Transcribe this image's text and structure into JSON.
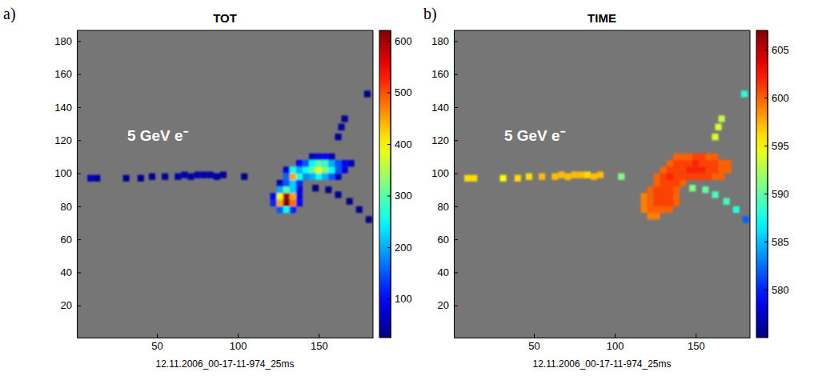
{
  "chart_data": [
    {
      "type": "heatmap",
      "panel_label": "a)",
      "title": "TOT",
      "xlabel": "12.11.2006_00-17-11-974_25ms",
      "annotation": "5 GeV e⁻",
      "xlim": [
        0.5,
        183.5
      ],
      "ylim": [
        0.5,
        186.5
      ],
      "xticks": [
        50,
        100,
        150
      ],
      "yticks": [
        20,
        40,
        60,
        80,
        100,
        120,
        140,
        160,
        180
      ],
      "cell_size": 4,
      "cells": [
        [
          9,
          97,
          60
        ],
        [
          13,
          97,
          40
        ],
        [
          31,
          97,
          30
        ],
        [
          40,
          97,
          35
        ],
        [
          47,
          98,
          35
        ],
        [
          55,
          98,
          40
        ],
        [
          63,
          98,
          45
        ],
        [
          67,
          99,
          50
        ],
        [
          71,
          98,
          45
        ],
        [
          75,
          99,
          55
        ],
        [
          79,
          99,
          50
        ],
        [
          83,
          99,
          55
        ],
        [
          87,
          98,
          45
        ],
        [
          91,
          99,
          40
        ],
        [
          104,
          98,
          28
        ],
        [
          126,
          78,
          150
        ],
        [
          130,
          78,
          250
        ],
        [
          134,
          78,
          120
        ],
        [
          122,
          82,
          120
        ],
        [
          126,
          82,
          450
        ],
        [
          130,
          82,
          620
        ],
        [
          134,
          82,
          480
        ],
        [
          138,
          82,
          100
        ],
        [
          122,
          86,
          100
        ],
        [
          126,
          86,
          400
        ],
        [
          130,
          86,
          600
        ],
        [
          134,
          86,
          450
        ],
        [
          138,
          86,
          90
        ],
        [
          126,
          90,
          200
        ],
        [
          130,
          90,
          300
        ],
        [
          134,
          90,
          220
        ],
        [
          138,
          90,
          80
        ],
        [
          126,
          94,
          60
        ],
        [
          130,
          94,
          150
        ],
        [
          134,
          94,
          220
        ],
        [
          138,
          94,
          120
        ],
        [
          130,
          98,
          160
        ],
        [
          134,
          98,
          450
        ],
        [
          138,
          98,
          260
        ],
        [
          142,
          98,
          180
        ],
        [
          146,
          98,
          200
        ],
        [
          150,
          98,
          250
        ],
        [
          154,
          98,
          200
        ],
        [
          158,
          98,
          150
        ],
        [
          162,
          98,
          60
        ],
        [
          130,
          102,
          80
        ],
        [
          134,
          102,
          260
        ],
        [
          138,
          102,
          200
        ],
        [
          142,
          102,
          250
        ],
        [
          146,
          102,
          300
        ],
        [
          150,
          102,
          380
        ],
        [
          154,
          102,
          320
        ],
        [
          158,
          102,
          250
        ],
        [
          162,
          102,
          150
        ],
        [
          166,
          102,
          80
        ],
        [
          138,
          106,
          100
        ],
        [
          142,
          106,
          150
        ],
        [
          146,
          106,
          250
        ],
        [
          150,
          106,
          300
        ],
        [
          154,
          106,
          280
        ],
        [
          158,
          106,
          200
        ],
        [
          162,
          106,
          150
        ],
        [
          166,
          106,
          100
        ],
        [
          170,
          106,
          60
        ],
        [
          146,
          110,
          60
        ],
        [
          150,
          110,
          80
        ],
        [
          154,
          110,
          100
        ],
        [
          158,
          110,
          60
        ],
        [
          162,
          122,
          40
        ],
        [
          164,
          128,
          45
        ],
        [
          166,
          133,
          40
        ],
        [
          180,
          148,
          30
        ],
        [
          148,
          91,
          30
        ],
        [
          156,
          90,
          35
        ],
        [
          162,
          87,
          35
        ],
        [
          169,
          83,
          30
        ],
        [
          175,
          78,
          35
        ],
        [
          181,
          72,
          30
        ]
      ],
      "colorbar": {
        "range": [
          25,
          620
        ],
        "ticks": [
          100,
          200,
          300,
          400,
          500,
          600
        ]
      }
    },
    {
      "type": "heatmap",
      "panel_label": "b)",
      "title": "TIME",
      "xlabel": "12.11.2006_00-17-11-974_25ms",
      "annotation": "5 GeV e⁻",
      "xlim": [
        0.5,
        183.5
      ],
      "ylim": [
        0.5,
        186.5
      ],
      "xticks": [
        50,
        100,
        150
      ],
      "yticks": [
        20,
        40,
        60,
        80,
        100,
        120,
        140,
        160,
        180
      ],
      "cell_size": 4,
      "cells": [
        [
          9,
          97,
          596
        ],
        [
          13,
          97,
          596
        ],
        [
          31,
          97,
          595
        ],
        [
          40,
          97,
          596
        ],
        [
          47,
          98,
          596
        ],
        [
          55,
          98,
          597
        ],
        [
          63,
          98,
          597
        ],
        [
          67,
          99,
          597
        ],
        [
          71,
          98,
          597
        ],
        [
          75,
          99,
          597
        ],
        [
          79,
          99,
          597
        ],
        [
          83,
          99,
          596
        ],
        [
          87,
          98,
          597
        ],
        [
          91,
          99,
          597
        ],
        [
          104,
          98,
          591
        ],
        [
          122,
          74,
          599
        ],
        [
          126,
          74,
          599
        ],
        [
          118,
          78,
          599
        ],
        [
          122,
          78,
          600
        ],
        [
          126,
          78,
          600
        ],
        [
          130,
          78,
          600
        ],
        [
          134,
          78,
          600
        ],
        [
          118,
          82,
          599
        ],
        [
          122,
          82,
          600
        ],
        [
          126,
          82,
          601
        ],
        [
          130,
          82,
          601
        ],
        [
          134,
          82,
          601
        ],
        [
          138,
          82,
          600
        ],
        [
          118,
          86,
          599
        ],
        [
          122,
          86,
          600
        ],
        [
          126,
          86,
          601
        ],
        [
          130,
          86,
          601
        ],
        [
          134,
          86,
          601
        ],
        [
          138,
          86,
          600
        ],
        [
          122,
          90,
          600
        ],
        [
          126,
          90,
          601
        ],
        [
          130,
          90,
          601
        ],
        [
          134,
          90,
          601
        ],
        [
          138,
          90,
          600
        ],
        [
          126,
          94,
          600
        ],
        [
          130,
          94,
          601
        ],
        [
          134,
          94,
          601
        ],
        [
          138,
          94,
          601
        ],
        [
          142,
          94,
          600
        ],
        [
          126,
          98,
          600
        ],
        [
          130,
          98,
          601
        ],
        [
          134,
          98,
          602
        ],
        [
          138,
          98,
          601
        ],
        [
          142,
          98,
          601
        ],
        [
          146,
          98,
          601
        ],
        [
          150,
          98,
          601
        ],
        [
          154,
          98,
          601
        ],
        [
          158,
          98,
          601
        ],
        [
          162,
          98,
          600
        ],
        [
          166,
          98,
          600
        ],
        [
          130,
          102,
          600
        ],
        [
          134,
          102,
          601
        ],
        [
          138,
          102,
          601
        ],
        [
          142,
          102,
          601
        ],
        [
          146,
          102,
          602
        ],
        [
          150,
          102,
          602
        ],
        [
          154,
          102,
          602
        ],
        [
          158,
          102,
          601
        ],
        [
          162,
          102,
          601
        ],
        [
          166,
          102,
          600
        ],
        [
          170,
          102,
          600
        ],
        [
          134,
          106,
          600
        ],
        [
          138,
          106,
          601
        ],
        [
          142,
          106,
          601
        ],
        [
          146,
          106,
          601
        ],
        [
          150,
          106,
          602
        ],
        [
          154,
          106,
          601
        ],
        [
          158,
          106,
          601
        ],
        [
          162,
          106,
          601
        ],
        [
          166,
          106,
          600
        ],
        [
          170,
          106,
          600
        ],
        [
          138,
          110,
          600
        ],
        [
          142,
          110,
          600
        ],
        [
          146,
          110,
          600
        ],
        [
          150,
          110,
          601
        ],
        [
          154,
          110,
          601
        ],
        [
          158,
          110,
          600
        ],
        [
          162,
          110,
          600
        ],
        [
          162,
          122,
          594
        ],
        [
          164,
          128,
          594
        ],
        [
          166,
          133,
          593
        ],
        [
          180,
          148,
          588
        ],
        [
          148,
          91,
          591
        ],
        [
          156,
          90,
          590
        ],
        [
          162,
          87,
          589
        ],
        [
          169,
          83,
          589
        ],
        [
          175,
          78,
          588
        ],
        [
          181,
          72,
          582
        ]
      ],
      "colorbar": {
        "range": [
          575,
          607
        ],
        "ticks": [
          580,
          585,
          590,
          595,
          600,
          605
        ]
      }
    }
  ]
}
